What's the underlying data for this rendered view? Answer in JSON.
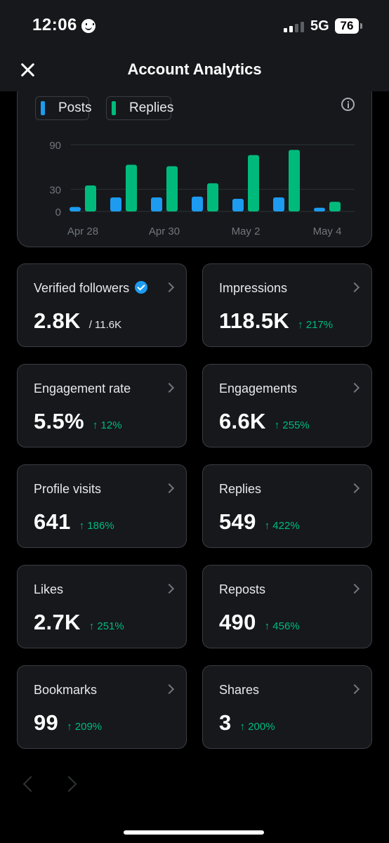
{
  "status_bar": {
    "time": "12:06",
    "network": "5G",
    "battery": "76"
  },
  "header": {
    "title": "Account Analytics"
  },
  "chart_data": {
    "type": "bar",
    "series": [
      {
        "name": "Posts",
        "color": "#1d9bf0",
        "values": [
          6,
          19,
          19,
          20,
          17,
          19,
          5
        ]
      },
      {
        "name": "Replies",
        "color": "#00ba7c",
        "values": [
          35,
          63,
          61,
          38,
          76,
          83,
          13
        ]
      }
    ],
    "x_tick_labels": [
      "Apr 28",
      "Apr 30",
      "May 2",
      "May 4"
    ],
    "y_tick_labels": [
      "0",
      "30",
      "90"
    ],
    "ylim": [
      0,
      90
    ],
    "grid": true,
    "legend": "top-left"
  },
  "metrics": [
    {
      "label": "Verified followers",
      "value": "2.8K",
      "total": "/ 11.6K",
      "change": "",
      "verified": true
    },
    {
      "label": "Impressions",
      "value": "118.5K",
      "change": "↑ 217%"
    },
    {
      "label": "Engagement rate",
      "value": "5.5%",
      "change": "↑ 12%"
    },
    {
      "label": "Engagements",
      "value": "6.6K",
      "change": "↑ 255%"
    },
    {
      "label": "Profile visits",
      "value": "641",
      "change": "↑ 186%"
    },
    {
      "label": "Replies",
      "value": "549",
      "change": "↑ 422%"
    },
    {
      "label": "Likes",
      "value": "2.7K",
      "change": "↑ 251%"
    },
    {
      "label": "Reposts",
      "value": "490",
      "change": "↑ 456%"
    },
    {
      "label": "Bookmarks",
      "value": "99",
      "change": "↑ 209%"
    },
    {
      "label": "Shares",
      "value": "3",
      "change": "↑ 200%"
    }
  ],
  "colors": {
    "accent_green": "#00ba7c",
    "accent_blue": "#1d9bf0",
    "card_bg": "#16181c",
    "border": "#3a3d42"
  }
}
